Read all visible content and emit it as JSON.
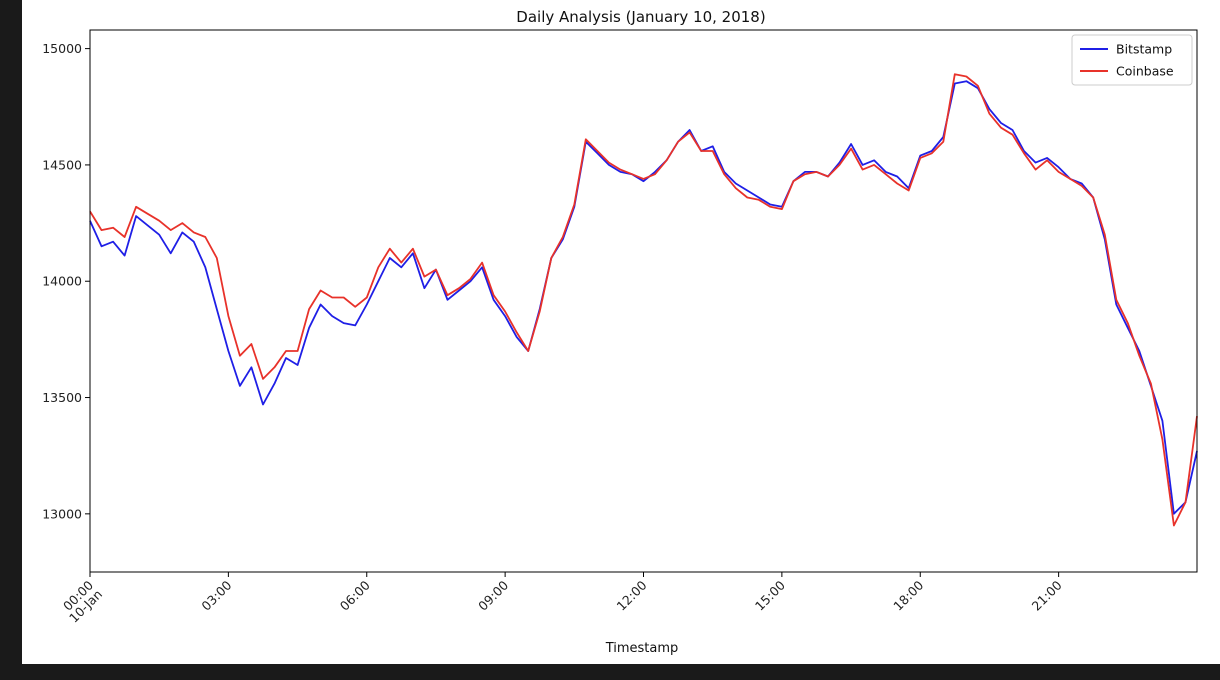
{
  "chart_data": {
    "type": "line",
    "title": "Daily Analysis (January 10, 2018)",
    "xlabel": "Timestamp",
    "ylabel": "",
    "xlim_hours": [
      0,
      24
    ],
    "ylim": [
      12750,
      15080
    ],
    "yticks": [
      13000,
      13500,
      14000,
      14500,
      15000
    ],
    "xticks": [
      {
        "hour": 0,
        "label": "00:00",
        "sublabel": "10-Jan"
      },
      {
        "hour": 3,
        "label": "03:00",
        "sublabel": ""
      },
      {
        "hour": 6,
        "label": "06:00",
        "sublabel": ""
      },
      {
        "hour": 9,
        "label": "09:00",
        "sublabel": ""
      },
      {
        "hour": 12,
        "label": "12:00",
        "sublabel": ""
      },
      {
        "hour": 15,
        "label": "15:00",
        "sublabel": ""
      },
      {
        "hour": 18,
        "label": "18:00",
        "sublabel": ""
      },
      {
        "hour": 21,
        "label": "21:00",
        "sublabel": ""
      }
    ],
    "legend_position": "top-right",
    "series": [
      {
        "name": "Bitstamp",
        "color": "#1f1fe6",
        "x": [
          "00:00",
          "00:15",
          "00:30",
          "00:45",
          "01:00",
          "01:15",
          "01:30",
          "01:45",
          "02:00",
          "02:15",
          "02:30",
          "02:45",
          "03:00",
          "03:15",
          "03:30",
          "03:45",
          "04:00",
          "04:15",
          "04:30",
          "04:45",
          "05:00",
          "05:15",
          "05:30",
          "05:45",
          "06:00",
          "06:15",
          "06:30",
          "06:45",
          "07:00",
          "07:15",
          "07:30",
          "07:45",
          "08:00",
          "08:15",
          "08:30",
          "08:45",
          "09:00",
          "09:15",
          "09:30",
          "09:45",
          "10:00",
          "10:15",
          "10:30",
          "10:45",
          "11:00",
          "11:15",
          "11:30",
          "11:45",
          "12:00",
          "12:15",
          "12:30",
          "12:45",
          "13:00",
          "13:15",
          "13:30",
          "13:45",
          "14:00",
          "14:15",
          "14:30",
          "14:45",
          "15:00",
          "15:15",
          "15:30",
          "15:45",
          "16:00",
          "16:15",
          "16:30",
          "16:45",
          "17:00",
          "17:15",
          "17:30",
          "17:45",
          "18:00",
          "18:15",
          "18:30",
          "18:45",
          "19:00",
          "19:15",
          "19:30",
          "19:45",
          "20:00",
          "20:15",
          "20:30",
          "20:45",
          "21:00",
          "21:15",
          "21:30",
          "21:45",
          "22:00",
          "22:15",
          "22:30",
          "22:45",
          "23:00",
          "23:15",
          "23:30",
          "23:45",
          "24:00"
        ],
        "values": [
          14260,
          14150,
          14170,
          14110,
          14280,
          14240,
          14200,
          14120,
          14210,
          14170,
          14060,
          13880,
          13700,
          13550,
          13630,
          13470,
          13560,
          13670,
          13640,
          13800,
          13900,
          13850,
          13820,
          13810,
          13900,
          14000,
          14100,
          14060,
          14120,
          13970,
          14050,
          13920,
          13960,
          14000,
          14060,
          13920,
          13850,
          13760,
          13700,
          13880,
          14100,
          14180,
          14320,
          14600,
          14550,
          14500,
          14470,
          14460,
          14430,
          14470,
          14520,
          14600,
          14650,
          14560,
          14580,
          14470,
          14420,
          14390,
          14360,
          14330,
          14320,
          14430,
          14470,
          14470,
          14450,
          14510,
          14590,
          14500,
          14520,
          14470,
          14450,
          14400,
          14540,
          14560,
          14620,
          14850,
          14860,
          14830,
          14740,
          14680,
          14650,
          14560,
          14510,
          14530,
          14490,
          14440,
          14420,
          14360,
          14180,
          13900,
          13800,
          13700,
          13550,
          13400,
          13000,
          13050,
          13270
        ]
      },
      {
        "name": "Coinbase",
        "color": "#e8322a",
        "x": [
          "00:00",
          "00:15",
          "00:30",
          "00:45",
          "01:00",
          "01:15",
          "01:30",
          "01:45",
          "02:00",
          "02:15",
          "02:30",
          "02:45",
          "03:00",
          "03:15",
          "03:30",
          "03:45",
          "04:00",
          "04:15",
          "04:30",
          "04:45",
          "05:00",
          "05:15",
          "05:30",
          "05:45",
          "06:00",
          "06:15",
          "06:30",
          "06:45",
          "07:00",
          "07:15",
          "07:30",
          "07:45",
          "08:00",
          "08:15",
          "08:30",
          "08:45",
          "09:00",
          "09:15",
          "09:30",
          "09:45",
          "10:00",
          "10:15",
          "10:30",
          "10:45",
          "11:00",
          "11:15",
          "11:30",
          "11:45",
          "12:00",
          "12:15",
          "12:30",
          "12:45",
          "13:00",
          "13:15",
          "13:30",
          "13:45",
          "14:00",
          "14:15",
          "14:30",
          "14:45",
          "15:00",
          "15:15",
          "15:30",
          "15:45",
          "16:00",
          "16:15",
          "16:30",
          "16:45",
          "17:00",
          "17:15",
          "17:30",
          "17:45",
          "18:00",
          "18:15",
          "18:30",
          "18:45",
          "19:00",
          "19:15",
          "19:30",
          "19:45",
          "20:00",
          "20:15",
          "20:30",
          "20:45",
          "21:00",
          "21:15",
          "21:30",
          "21:45",
          "22:00",
          "22:15",
          "22:30",
          "22:45",
          "23:00",
          "23:15",
          "23:30",
          "23:45",
          "24:00"
        ],
        "values": [
          14300,
          14220,
          14230,
          14190,
          14320,
          14290,
          14260,
          14220,
          14250,
          14210,
          14190,
          14100,
          13850,
          13680,
          13730,
          13580,
          13630,
          13700,
          13700,
          13880,
          13960,
          13930,
          13930,
          13890,
          13930,
          14060,
          14140,
          14080,
          14140,
          14020,
          14050,
          13940,
          13970,
          14010,
          14080,
          13940,
          13870,
          13780,
          13700,
          13870,
          14100,
          14190,
          14330,
          14610,
          14560,
          14510,
          14480,
          14460,
          14440,
          14460,
          14520,
          14600,
          14640,
          14560,
          14560,
          14460,
          14400,
          14360,
          14350,
          14320,
          14310,
          14430,
          14460,
          14470,
          14450,
          14500,
          14570,
          14480,
          14500,
          14460,
          14420,
          14390,
          14530,
          14550,
          14600,
          14890,
          14880,
          14840,
          14720,
          14660,
          14630,
          14550,
          14480,
          14520,
          14470,
          14440,
          14410,
          14360,
          14200,
          13920,
          13820,
          13680,
          13560,
          13320,
          12950,
          13050,
          13420
        ]
      }
    ]
  }
}
